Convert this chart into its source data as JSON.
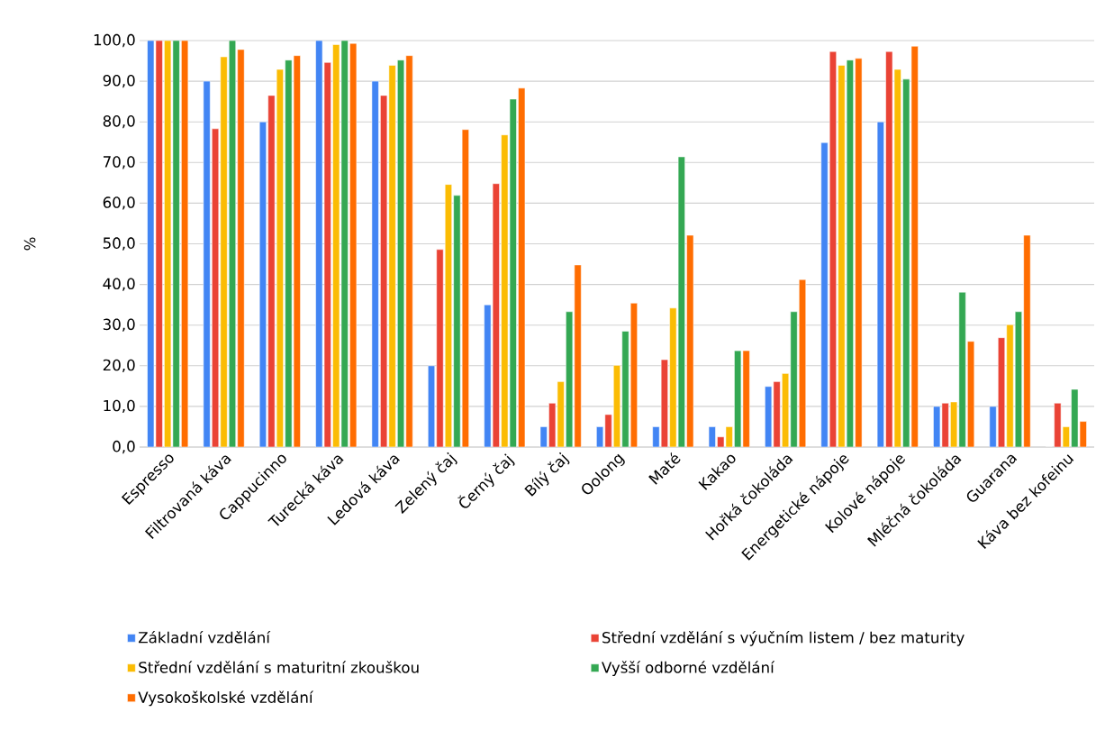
{
  "chart_data": {
    "type": "bar",
    "ylabel": "%",
    "categories": [
      "Espresso",
      "Filtrovaná káva",
      "Cappucinno",
      "Turecká káva",
      "Ledová káva",
      "Zelený čaj",
      "Černý čaj",
      "Bílý čaj",
      "Oolong",
      "Maté",
      "Kakao",
      "Hořká čokoláda",
      "Energetické nápoje",
      "Kolové nápoje",
      "Mléčná čokoláda",
      "Guarana",
      "Káva bez kofeinu"
    ],
    "series": [
      {
        "name": "Základní vzdělání",
        "color": "#4285f4",
        "values": [
          100,
          90,
          80,
          100,
          90,
          20,
          35,
          5,
          5,
          5,
          5,
          14.9,
          74.9,
          80,
          10,
          10,
          0
        ]
      },
      {
        "name": "Střední vzdělání s výučním listem / bez maturity",
        "color": "#ea4335",
        "values": [
          100,
          78.3,
          86.5,
          94.6,
          86.5,
          48.6,
          64.8,
          10.8,
          8.0,
          21.5,
          2.5,
          16.1,
          97.3,
          97.3,
          10.8,
          26.9,
          10.8
        ]
      },
      {
        "name": "Střední vzdělání s maturitní zkouškou",
        "color": "#fbbc04",
        "values": [
          100,
          96.0,
          92.9,
          99.0,
          93.9,
          64.6,
          76.8,
          16.1,
          20.1,
          34.2,
          5,
          18.1,
          93.9,
          92.9,
          11.1,
          30.1,
          5
        ]
      },
      {
        "name": "Vyšší odborné vzdělání",
        "color": "#34a853",
        "values": [
          100,
          100,
          95.2,
          100,
          95.2,
          61.9,
          85.6,
          33.3,
          28.5,
          71.4,
          23.7,
          33.3,
          95.2,
          90.5,
          38.1,
          33.3,
          14.2
        ]
      },
      {
        "name": "Vysokoškolské vzdělání",
        "color": "#ff6d01",
        "values": [
          100,
          97.8,
          96.3,
          99.3,
          96.3,
          78.1,
          88.3,
          44.8,
          35.4,
          52.1,
          23.7,
          41.2,
          95.6,
          98.6,
          26.0,
          52.1,
          6.3
        ]
      }
    ],
    "ylim": [
      0,
      100
    ],
    "yticks": [
      {
        "value": 0,
        "label": "0,0"
      },
      {
        "value": 10,
        "label": "10,0"
      },
      {
        "value": 20,
        "label": "20,0"
      },
      {
        "value": 30,
        "label": "30,0"
      },
      {
        "value": 40,
        "label": "40,0"
      },
      {
        "value": 50,
        "label": "50,0"
      },
      {
        "value": 60,
        "label": "60,0"
      },
      {
        "value": 70,
        "label": "70,0"
      },
      {
        "value": 80,
        "label": "80,0"
      },
      {
        "value": 90,
        "label": "90,0"
      },
      {
        "value": 100,
        "label": "100,0"
      }
    ],
    "grid": "y",
    "legend": "bottom"
  }
}
